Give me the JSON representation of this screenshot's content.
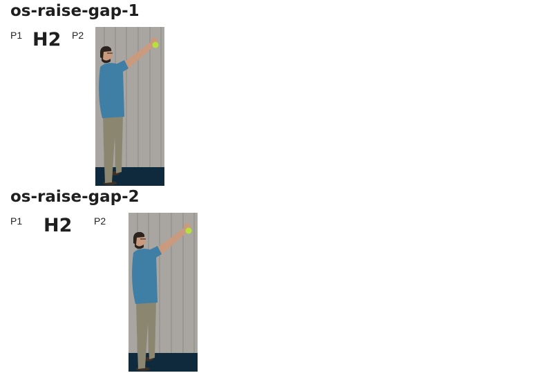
{
  "sections": [
    {
      "title": "os-raise-gap-1",
      "label_p1": "P1",
      "label_h2": "H2",
      "label_p2": "P2",
      "photo_icon": "person-raising-arm-photo-icon"
    },
    {
      "title": "os-raise-gap-2",
      "label_p1": "P1",
      "label_h2": "H2",
      "label_p2": "P2",
      "photo_icon": "person-raising-arm-photo-icon"
    }
  ],
  "colors": {
    "wall": "#a9a6a1",
    "wall_seam": "#8c8984",
    "floor": "#0f2a3c",
    "shirt": "#3f7ea5",
    "pants": "#8a8670",
    "skin": "#c99a7e",
    "hair": "#2b231e",
    "ball": "#b7e13a",
    "text": "#1f1f1f"
  }
}
